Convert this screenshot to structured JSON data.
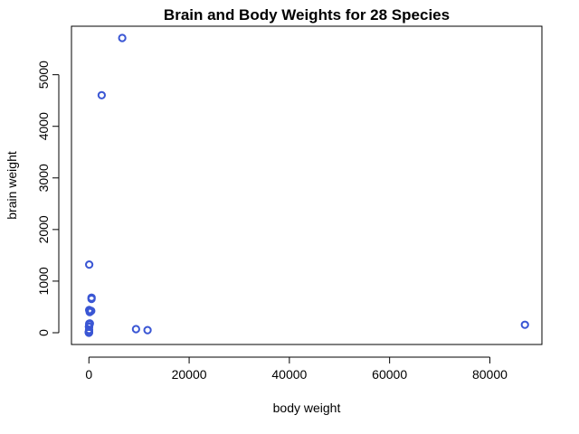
{
  "chart_data": {
    "type": "scatter",
    "title": "Brain and Body Weights for 28 Species",
    "xlabel": "body weight",
    "ylabel": "brain weight",
    "xlim": [
      -3480,
      90390
    ],
    "ylim": [
      -228,
      5940
    ],
    "x_ticks": [
      0,
      20000,
      40000,
      60000,
      80000
    ],
    "x_tick_labels": [
      "0",
      "20000",
      "40000",
      "60000",
      "80000"
    ],
    "y_ticks": [
      0,
      1000,
      2000,
      3000,
      4000,
      5000
    ],
    "y_tick_labels": [
      "0",
      "1000",
      "2000",
      "3000",
      "4000",
      "5000"
    ],
    "grid": false,
    "legend": "none",
    "marker_color": "#3a56d4",
    "points": [
      {
        "x": 6650,
        "y": 5712
      },
      {
        "x": 2547,
        "y": 4603
      },
      {
        "x": 62,
        "y": 1320
      },
      {
        "x": 521,
        "y": 655
      },
      {
        "x": 529,
        "y": 680
      },
      {
        "x": 187,
        "y": 419
      },
      {
        "x": 207,
        "y": 406
      },
      {
        "x": 465,
        "y": 423
      },
      {
        "x": 36,
        "y": 119.5
      },
      {
        "x": 27.66,
        "y": 115
      },
      {
        "x": 100,
        "y": 157
      },
      {
        "x": 35,
        "y": 56
      },
      {
        "x": 55.5,
        "y": 175
      },
      {
        "x": 52.16,
        "y": 440
      },
      {
        "x": 10,
        "y": 115
      },
      {
        "x": 3.3,
        "y": 25.6
      },
      {
        "x": 1.35,
        "y": 8.1
      },
      {
        "x": 0.28,
        "y": 1.9
      },
      {
        "x": 0.12,
        "y": 3
      },
      {
        "x": 0.023,
        "y": 0.4
      },
      {
        "x": 0.48,
        "y": 15.5
      },
      {
        "x": 1.04,
        "y": 5.5
      },
      {
        "x": 0.75,
        "y": 12.3
      },
      {
        "x": 9400,
        "y": 70
      },
      {
        "x": 11700,
        "y": 50
      },
      {
        "x": 87000,
        "y": 154.5
      },
      {
        "x": 162,
        "y": 400
      },
      {
        "x": 192,
        "y": 180
      }
    ]
  }
}
